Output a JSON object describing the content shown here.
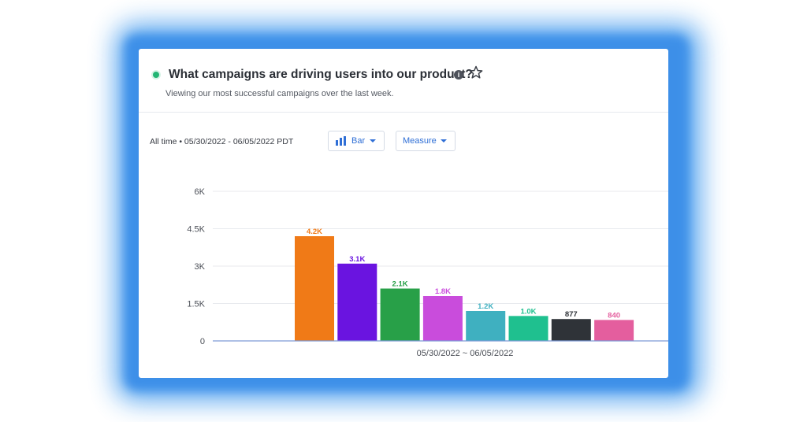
{
  "card": {
    "title": "What campaigns are driving users into our product?",
    "subtitle": "Viewing our most successful campaigns over the last week.",
    "time_range": "All time • 05/30/2022 - 06/05/2022 PDT",
    "chart_type_dropdown": "Bar",
    "measure_dropdown": "Measure",
    "icons": [
      "status-dot",
      "info-icon",
      "star-icon",
      "bar-chart-icon",
      "caret-down-icon"
    ],
    "colors": {
      "accent": "#2f6fd6",
      "status": "#22b573"
    }
  },
  "chart_data": {
    "type": "bar",
    "xlabel": "05/30/2022 ~ 06/05/2022",
    "ylabel": "",
    "ylim": [
      0,
      6000
    ],
    "yticks": [
      0,
      1500,
      3000,
      4500,
      6000
    ],
    "ytick_labels": [
      "0",
      "1.5K",
      "3K",
      "4.5K",
      "6K"
    ],
    "grid": true,
    "bars": [
      {
        "value": 4200,
        "label": "4.2K",
        "color": "#f07a17"
      },
      {
        "value": 3100,
        "label": "3.1K",
        "color": "#6a14e0"
      },
      {
        "value": 2100,
        "label": "2.1K",
        "color": "#28a048"
      },
      {
        "value": 1800,
        "label": "1.8K",
        "color": "#c94cdc"
      },
      {
        "value": 1200,
        "label": "1.2K",
        "color": "#3fb0c0"
      },
      {
        "value": 1000,
        "label": "1.0K",
        "color": "#1fc08f"
      },
      {
        "value": 877,
        "label": "877",
        "color": "#2f3338"
      },
      {
        "value": 840,
        "label": "840",
        "color": "#e45e9e"
      }
    ]
  }
}
